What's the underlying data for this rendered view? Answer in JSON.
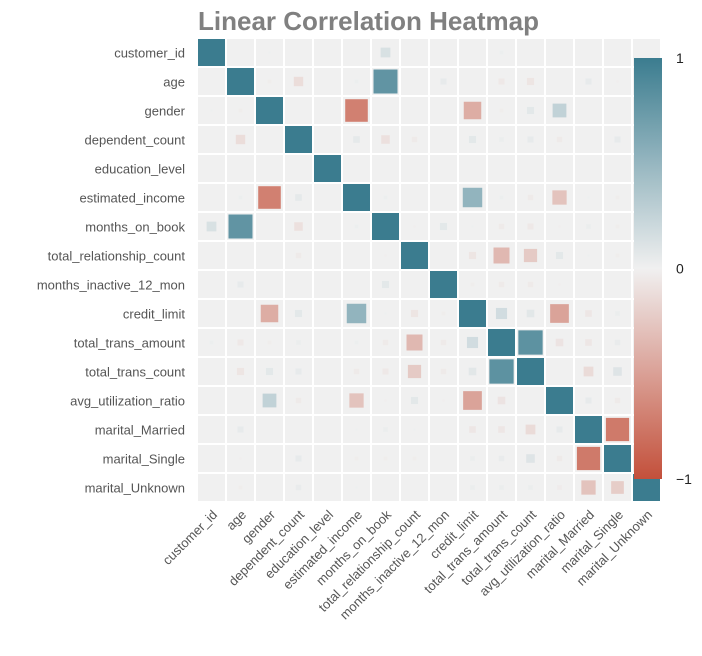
{
  "chart_data": {
    "type": "heatmap",
    "title": "Linear Correlation Heatmap",
    "labels": [
      "customer_id",
      "age",
      "gender",
      "dependent_count",
      "education_level",
      "estimated_income",
      "months_on_book",
      "total_relationship_count",
      "months_inactive_12_mon",
      "credit_limit",
      "total_trans_amount",
      "total_trans_count",
      "avg_utilization_ratio",
      "marital_Married",
      "marital_Single",
      "marital_Unknown"
    ],
    "matrix": [
      [
        1.0,
        0.0,
        0.01,
        0.0,
        0.0,
        0.0,
        0.13,
        0.0,
        0.0,
        0.0,
        0.02,
        0.0,
        0.0,
        0.0,
        0.0,
        0.0
      ],
      [
        0.0,
        1.0,
        -0.02,
        -0.12,
        0.0,
        0.02,
        0.79,
        0.0,
        0.05,
        0.0,
        -0.05,
        -0.07,
        0.0,
        0.05,
        -0.01,
        -0.02
      ],
      [
        0.01,
        -0.02,
        1.0,
        0.0,
        0.0,
        -0.7,
        0.0,
        0.0,
        0.0,
        -0.42,
        -0.02,
        0.07,
        0.26,
        0.0,
        0.0,
        0.0
      ],
      [
        0.0,
        -0.12,
        0.0,
        1.0,
        0.0,
        0.06,
        -0.1,
        -0.04,
        0.0,
        0.07,
        0.03,
        0.05,
        -0.04,
        0.0,
        0.05,
        0.04
      ],
      [
        0.0,
        0.0,
        0.0,
        0.0,
        1.0,
        0.0,
        0.0,
        0.0,
        0.0,
        0.0,
        0.0,
        0.0,
        0.0,
        0.0,
        0.0,
        0.0
      ],
      [
        0.0,
        0.02,
        -0.7,
        0.06,
        0.0,
        1.0,
        0.02,
        0.0,
        0.0,
        0.52,
        0.02,
        -0.04,
        -0.28,
        0.01,
        -0.02,
        0.01
      ],
      [
        0.13,
        0.79,
        0.0,
        -0.1,
        0.0,
        0.02,
        1.0,
        -0.01,
        0.07,
        0.01,
        -0.04,
        -0.05,
        -0.01,
        0.03,
        -0.02,
        0.0
      ],
      [
        0.0,
        0.0,
        0.0,
        -0.04,
        0.0,
        0.0,
        -0.01,
        1.0,
        -0.0,
        -0.07,
        -0.35,
        -0.24,
        0.07,
        0.01,
        -0.02,
        0.0
      ],
      [
        0.0,
        0.05,
        0.0,
        0.0,
        0.0,
        0.0,
        0.07,
        -0.0,
        1.0,
        -0.02,
        -0.04,
        -0.04,
        -0.01,
        0.0,
        0.0,
        0.0
      ],
      [
        0.0,
        0.0,
        -0.42,
        0.07,
        0.0,
        0.52,
        0.01,
        -0.07,
        -0.02,
        1.0,
        0.17,
        0.08,
        -0.48,
        -0.06,
        0.03,
        0.03
      ],
      [
        0.02,
        -0.05,
        -0.02,
        0.03,
        0.0,
        0.02,
        -0.04,
        -0.35,
        -0.04,
        0.17,
        1.0,
        0.81,
        -0.08,
        -0.06,
        0.04,
        0.03
      ],
      [
        0.0,
        -0.07,
        0.07,
        0.05,
        0.0,
        -0.04,
        -0.05,
        -0.24,
        -0.04,
        0.08,
        0.81,
        1.0,
        0.0,
        -0.13,
        0.1,
        0.03
      ],
      [
        0.0,
        0.0,
        0.26,
        -0.04,
        0.0,
        -0.28,
        -0.01,
        0.07,
        -0.01,
        -0.48,
        -0.08,
        0.0,
        1.0,
        0.05,
        -0.04,
        -0.03
      ],
      [
        0.0,
        0.05,
        0.0,
        0.0,
        0.0,
        0.01,
        0.03,
        0.01,
        0.0,
        -0.06,
        -0.06,
        -0.13,
        0.05,
        1.0,
        -0.74,
        -0.28
      ],
      [
        0.0,
        -0.01,
        0.0,
        0.05,
        0.0,
        -0.02,
        -0.02,
        -0.02,
        0.0,
        0.03,
        0.04,
        0.1,
        -0.04,
        -0.74,
        1.0,
        -0.22
      ],
      [
        0.0,
        -0.02,
        0.0,
        0.04,
        0.0,
        0.01,
        0.0,
        0.0,
        0.0,
        0.03,
        0.03,
        0.03,
        -0.03,
        -0.28,
        -0.22,
        1.0
      ]
    ],
    "vmin": -1,
    "vmax": 1,
    "colorbar_ticks": [
      "1",
      "0",
      "−1"
    ],
    "colors": {
      "positive": "#3b7c8f",
      "negative": "#c3503b",
      "neutral": "#f0f0f0",
      "grid": "#ffffff",
      "title": "#808080"
    }
  }
}
